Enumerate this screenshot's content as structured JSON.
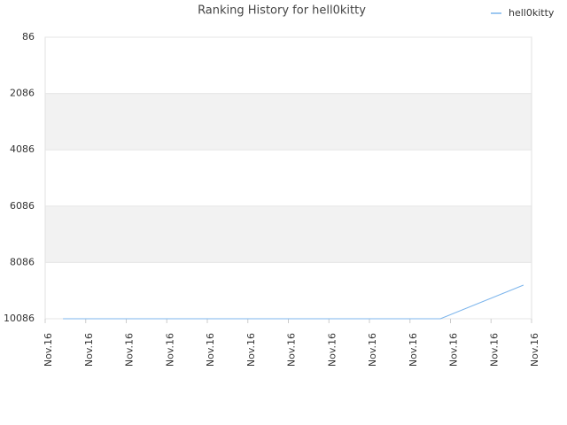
{
  "chart_data": {
    "type": "line",
    "title": "Ranking History for hell0kitty",
    "series": [
      {
        "name": "hell0kitty",
        "color": "#7cb5ec",
        "x": [
          0.44,
          9.75,
          11.8
        ],
        "values": [
          10086,
          10086,
          8891
        ]
      }
    ],
    "xlim": [
      0,
      12
    ],
    "xticks": [
      {
        "value": 0,
        "label": "Nov.16"
      },
      {
        "value": 1,
        "label": "Nov.16"
      },
      {
        "value": 2,
        "label": "Nov.16"
      },
      {
        "value": 3,
        "label": "Nov.16"
      },
      {
        "value": 4,
        "label": "Nov.16"
      },
      {
        "value": 5,
        "label": "Nov.16"
      },
      {
        "value": 6,
        "label": "Nov.16"
      },
      {
        "value": 7,
        "label": "Nov.16"
      },
      {
        "value": 8,
        "label": "Nov.16"
      },
      {
        "value": 9,
        "label": "Nov.16"
      },
      {
        "value": 10,
        "label": "Nov.16"
      },
      {
        "value": 11,
        "label": "Nov.16"
      },
      {
        "value": 12,
        "label": "Nov.16"
      }
    ],
    "ylim": [
      86,
      10086
    ],
    "y_reversed": true,
    "yticks": [
      86,
      2086,
      4086,
      6086,
      8086,
      10086
    ],
    "grid": true,
    "alternate_bands": true,
    "legend": "top-right"
  }
}
